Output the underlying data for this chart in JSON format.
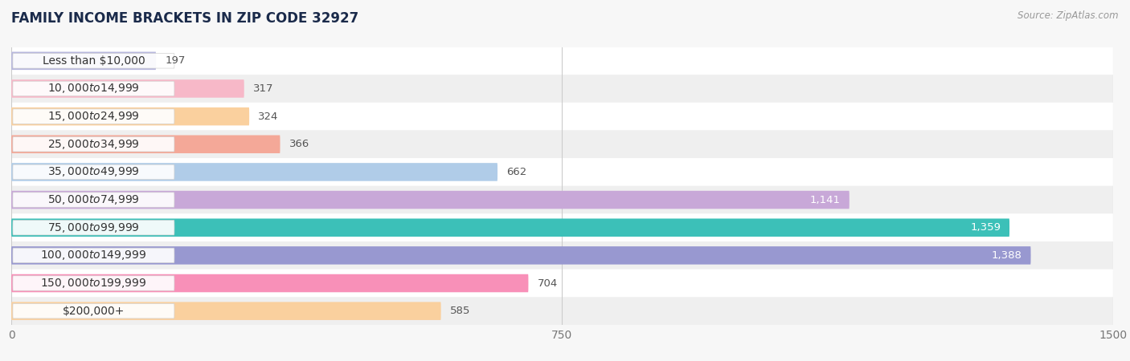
{
  "title": "FAMILY INCOME BRACKETS IN ZIP CODE 32927",
  "source": "Source: ZipAtlas.com",
  "categories": [
    "Less than $10,000",
    "$10,000 to $14,999",
    "$15,000 to $24,999",
    "$25,000 to $34,999",
    "$35,000 to $49,999",
    "$50,000 to $74,999",
    "$75,000 to $99,999",
    "$100,000 to $149,999",
    "$150,000 to $199,999",
    "$200,000+"
  ],
  "values": [
    197,
    317,
    324,
    366,
    662,
    1141,
    1359,
    1388,
    704,
    585
  ],
  "bar_colors": [
    "#b8b8de",
    "#f7b8c8",
    "#fad09e",
    "#f4a898",
    "#b0cce8",
    "#c8a8d8",
    "#3cc0b8",
    "#9898d0",
    "#f890b8",
    "#fad09e"
  ],
  "xlim": [
    0,
    1500
  ],
  "xticks": [
    0,
    750,
    1500
  ],
  "row_colors": [
    "#ffffff",
    "#efefef"
  ],
  "title_fontsize": 12,
  "label_fontsize": 10,
  "value_fontsize": 9.5,
  "bar_height": 0.65,
  "value_threshold": 900,
  "fig_bg": "#f7f7f7"
}
